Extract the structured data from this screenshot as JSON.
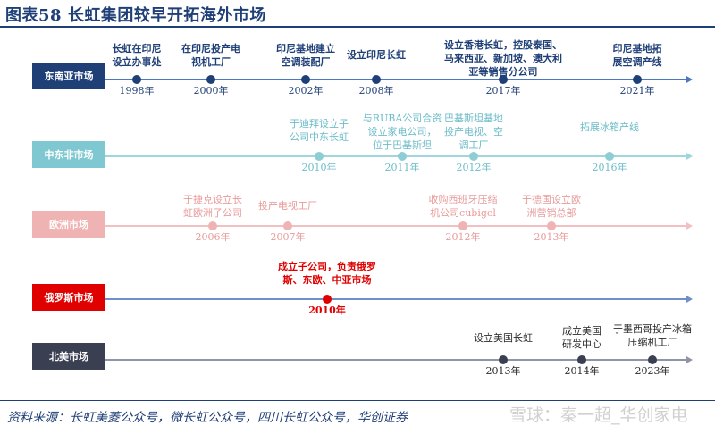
{
  "title": "图表58 长虹集团较早开拓海外市场",
  "source": "资料来源：长虹美菱公众号，微长虹公众号，四川长虹公众号，华创证券",
  "watermark": "雪球：秦一超_华创家电",
  "rows": [
    {
      "label": "东南亚市场",
      "label_color": "#1f3f77",
      "line_color": "#4a78c2",
      "dot_color": "#1f3f77",
      "text_color": "#1f3f77",
      "events": [
        {
          "year": "1998年",
          "text": [
            "长虹在印尼",
            "设立办事处"
          ]
        },
        {
          "year": "2000年",
          "text": [
            "在印尼投产电",
            "视机工厂"
          ]
        },
        {
          "year": "2002年",
          "text": [
            "印尼基地建立",
            "空调装配厂"
          ]
        },
        {
          "year": "2008年",
          "text": [
            "设立印尼长虹"
          ]
        },
        {
          "year": "2017年",
          "text": [
            "设立香港长虹，控股泰国、",
            "马来西亚、新加坡、澳大利",
            "亚等销售分公司"
          ]
        },
        {
          "year": "2021年",
          "text": [
            "印尼基地拓",
            "展空调产线"
          ]
        }
      ]
    },
    {
      "label": "中东非市场",
      "label_color": "#7fc8d2",
      "line_color": "#9fd6de",
      "dot_color": "#8fcdd6",
      "text_color": "#6bbcc8",
      "events": [
        {
          "year": "2010年",
          "text": [
            "于迪拜设立子",
            "公司中东长虹"
          ]
        },
        {
          "year": "2011年",
          "text": [
            "与RUBA公司合资",
            "设立家电公司，",
            "位于巴基斯坦"
          ]
        },
        {
          "year": "2012年",
          "text": [
            "巴基斯坦基地",
            "投产电视、空",
            "调工厂"
          ]
        },
        {
          "year": "2016年",
          "text": [
            "拓展冰箱产线"
          ]
        }
      ]
    },
    {
      "label": "欧洲市场",
      "label_color": "#f0b3b3",
      "line_color": "#f2c0c0",
      "dot_color": "#efb3b3",
      "text_color": "#e89a9a",
      "events": [
        {
          "year": "2006年",
          "text": [
            "于捷克设立长",
            "虹欧洲子公司"
          ]
        },
        {
          "year": "2007年",
          "text": [
            "投产电视工厂"
          ]
        },
        {
          "year": "2012年",
          "text": [
            "收购西班牙压缩",
            "机公司cubigel"
          ]
        },
        {
          "year": "2013年",
          "text": [
            "于德国设立欧",
            "洲营销总部"
          ]
        }
      ]
    },
    {
      "label": "俄罗斯市场",
      "label_color": "#e00000",
      "line_color": "#6f8fc8",
      "dot_color": "#e00000",
      "text_color": "#e00000",
      "events": [
        {
          "year": "2010年",
          "text": [
            "成立子公司，负责俄罗",
            "斯、东欧、中亚市场"
          ]
        }
      ]
    },
    {
      "label": "北美市场",
      "label_color": "#3b3f52",
      "line_color": "#8f94a6",
      "dot_color": "#3b3f52",
      "text_color": "#2a2a2a",
      "events": [
        {
          "year": "2013年",
          "text": [
            "设立美国长虹"
          ]
        },
        {
          "year": "2014年",
          "text": [
            "成立美国",
            "研发中心"
          ]
        },
        {
          "year": "2023年",
          "text": [
            "于墨西哥投产冰箱",
            "压缩机工厂"
          ]
        }
      ]
    }
  ]
}
